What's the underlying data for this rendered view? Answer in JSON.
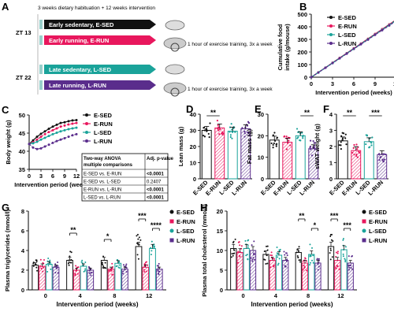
{
  "colors": {
    "E-SED": "#111111",
    "E-RUN": "#e8175d",
    "L-SED": "#1aa39a",
    "L-RUN": "#5a2d8c"
  },
  "groups": [
    "E-SED",
    "E-RUN",
    "L-SED",
    "L-RUN"
  ],
  "panel_a": {
    "letter": "A",
    "header": "3 weeks dietary habituation + 12 weeks intervention",
    "zt13": "ZT 13",
    "zt22": "ZT 22",
    "bars": [
      "Early sedentary, E-SED",
      "Early running, E-RUN",
      "Late sedentary, L-SED",
      "Late running, L-RUN"
    ],
    "training_note_1": "1 hour of exercise training, 3x a week",
    "training_note_2": "1 hour of exercise training, 3x a week"
  },
  "chart_data": [
    {
      "panel": "B",
      "type": "line",
      "xlabel": "Intervention period (weeks)",
      "ylabel": "Cumulative food intake (g/mouse)",
      "xlim": [
        0,
        12
      ],
      "ylim": [
        0,
        500
      ],
      "xticks": [
        0,
        3,
        6,
        9,
        12
      ],
      "yticks": [
        0,
        100,
        200,
        300,
        400,
        500
      ],
      "legend": [
        "E-SED",
        "E-RUN",
        "L-SED",
        "L-RUN"
      ],
      "x": [
        0,
        1,
        2,
        3,
        4,
        5,
        6,
        7,
        8,
        9,
        10,
        11,
        12
      ],
      "series": [
        {
          "name": "E-SED",
          "values": [
            0,
            38,
            76,
            114,
            152,
            190,
            228,
            266,
            304,
            342,
            380,
            418,
            456
          ]
        },
        {
          "name": "E-RUN",
          "values": [
            0,
            38,
            76,
            114,
            153,
            191,
            229,
            267,
            305,
            343,
            381,
            419,
            458
          ]
        },
        {
          "name": "L-SED",
          "values": [
            0,
            37,
            75,
            112,
            150,
            188,
            225,
            263,
            300,
            338,
            376,
            413,
            452
          ]
        },
        {
          "name": "L-RUN",
          "values": [
            0,
            37,
            74,
            112,
            149,
            186,
            224,
            261,
            298,
            336,
            373,
            410,
            448
          ]
        }
      ]
    },
    {
      "panel": "C",
      "type": "line",
      "xlabel": "Intervention period (weeks)",
      "ylabel": "Body weight (g)",
      "xlim": [
        0,
        12
      ],
      "ylim": [
        35,
        50
      ],
      "xticks": [
        0,
        3,
        6,
        9,
        12
      ],
      "yticks": [
        35,
        40,
        45,
        50
      ],
      "legend": [
        "E-SED",
        "E-RUN",
        "L-SED",
        "L-RUN"
      ],
      "x": [
        0,
        1,
        2,
        3,
        4,
        5,
        6,
        7,
        8,
        9,
        10,
        11,
        12
      ],
      "series": [
        {
          "name": "E-SED",
          "values": [
            42,
            43,
            44,
            44.8,
            45.5,
            46.2,
            46.8,
            47.3,
            47.8,
            48,
            48.3,
            48.5,
            48.6
          ]
        },
        {
          "name": "E-RUN",
          "values": [
            42,
            42.5,
            43.2,
            44,
            44.7,
            45.3,
            45.8,
            46.3,
            46.8,
            47.1,
            47.4,
            47.6,
            47.8
          ]
        },
        {
          "name": "L-SED",
          "values": [
            42,
            42.2,
            42.6,
            43.2,
            43.7,
            44.2,
            44.7,
            45.1,
            45.5,
            45.8,
            46.1,
            46.3,
            46.5
          ]
        },
        {
          "name": "L-RUN",
          "values": [
            42,
            41,
            40.6,
            40.8,
            41.3,
            41.8,
            42.3,
            42.8,
            43.2,
            43.6,
            44,
            44.4,
            44.7
          ]
        }
      ],
      "table": {
        "header": [
          "Two-way ANOVA multiple comparisons",
          "Adj. p-value"
        ],
        "rows": [
          [
            "E-SED vs. E-RUN",
            "<0.0001"
          ],
          [
            "E-SED vs. L-SED",
            "0.2407"
          ],
          [
            "E-RUN vs. L-RUN",
            "<0.0001"
          ],
          [
            "L-SED vs. L-RUN",
            "<0.0001"
          ]
        ]
      }
    },
    {
      "panel": "D",
      "type": "bar",
      "ylabel": "Lean mass (g)",
      "ylim": [
        0,
        40
      ],
      "yticks": [
        0,
        10,
        20,
        30,
        40
      ],
      "categories": [
        "E-SED",
        "E-RUN",
        "L-SED",
        "L-RUN"
      ],
      "values": [
        30,
        31.5,
        29.5,
        31
      ],
      "annotations": [
        {
          "between": [
            "E-SED",
            "E-RUN"
          ],
          "text": "**"
        }
      ]
    },
    {
      "panel": "E",
      "type": "bar",
      "ylabel": "Fat mass (g)",
      "ylim": [
        0,
        30
      ],
      "yticks": [
        0,
        10,
        20,
        30
      ],
      "categories": [
        "E-SED",
        "E-RUN",
        "L-SED",
        "L-RUN"
      ],
      "values": [
        18,
        17,
        20,
        14
      ],
      "annotations": [
        {
          "between": [
            "L-SED",
            "L-RUN"
          ],
          "text": "**"
        }
      ]
    },
    {
      "panel": "F",
      "type": "bar",
      "ylabel": "sWAT weight (g)",
      "ylim": [
        0,
        4
      ],
      "yticks": [
        0,
        1,
        2,
        3,
        4
      ],
      "categories": [
        "E-SED",
        "E-RUN",
        "L-SED",
        "L-RUN"
      ],
      "values": [
        2.35,
        1.75,
        2.3,
        1.5
      ],
      "annotations": [
        {
          "between": [
            "E-SED",
            "E-RUN"
          ],
          "text": "**"
        },
        {
          "between": [
            "L-SED",
            "L-RUN"
          ],
          "text": "***"
        }
      ]
    },
    {
      "panel": "G",
      "type": "bar",
      "xlabel": "Intervention period (weeks)",
      "ylabel": "Plasma triglycerides (mmol/l)",
      "ylim": [
        0,
        8
      ],
      "yticks": [
        0,
        2,
        4,
        6,
        8
      ],
      "categories": [
        "0",
        "4",
        "8",
        "12"
      ],
      "legend": [
        "E-SED",
        "E-RUN",
        "L-SED",
        "L-RUN"
      ],
      "series": [
        {
          "name": "E-SED",
          "values": [
            2.5,
            3.0,
            3.0,
            4.4
          ]
        },
        {
          "name": "E-RUN",
          "values": [
            2.4,
            2.0,
            2.1,
            2.3
          ]
        },
        {
          "name": "L-SED",
          "values": [
            2.6,
            2.4,
            2.7,
            4.2
          ]
        },
        {
          "name": "L-RUN",
          "values": [
            2.3,
            2.0,
            2.1,
            2.1
          ]
        }
      ],
      "annotations": [
        {
          "group": "4",
          "from": "E-SED",
          "to": "E-RUN",
          "text": "**"
        },
        {
          "group": "8",
          "from": "E-SED",
          "to": "E-RUN",
          "text": "*"
        },
        {
          "group": "12",
          "from": "E-SED",
          "to": "E-RUN",
          "text": "***"
        },
        {
          "group": "12",
          "from": "L-SED",
          "to": "L-RUN",
          "text": "****"
        }
      ]
    },
    {
      "panel": "H",
      "type": "bar",
      "xlabel": "Intervention period (weeks)",
      "ylabel": "Plasma total cholesterol (mmol/l)",
      "ylim": [
        0,
        20
      ],
      "yticks": [
        0,
        5,
        10,
        15,
        20
      ],
      "categories": [
        "0",
        "4",
        "8",
        "12"
      ],
      "legend": [
        "E-SED",
        "E-RUN",
        "L-SED",
        "L-RUN"
      ],
      "series": [
        {
          "name": "E-SED",
          "values": [
            10.5,
            9.0,
            9.5,
            11.0
          ]
        },
        {
          "name": "E-RUN",
          "values": [
            9.5,
            7.5,
            6.8,
            7.5
          ]
        },
        {
          "name": "L-SED",
          "values": [
            10.5,
            8.8,
            9.0,
            10.2
          ]
        },
        {
          "name": "L-RUN",
          "values": [
            10.0,
            7.5,
            6.8,
            6.8
          ]
        }
      ],
      "annotations": [
        {
          "group": "8",
          "from": "E-SED",
          "to": "E-RUN",
          "text": "**"
        },
        {
          "group": "8",
          "from": "L-SED",
          "to": "L-RUN",
          "text": "*"
        },
        {
          "group": "12",
          "from": "E-SED",
          "to": "E-RUN",
          "text": "***"
        },
        {
          "group": "12",
          "from": "L-SED",
          "to": "L-RUN",
          "text": "***"
        }
      ]
    }
  ]
}
